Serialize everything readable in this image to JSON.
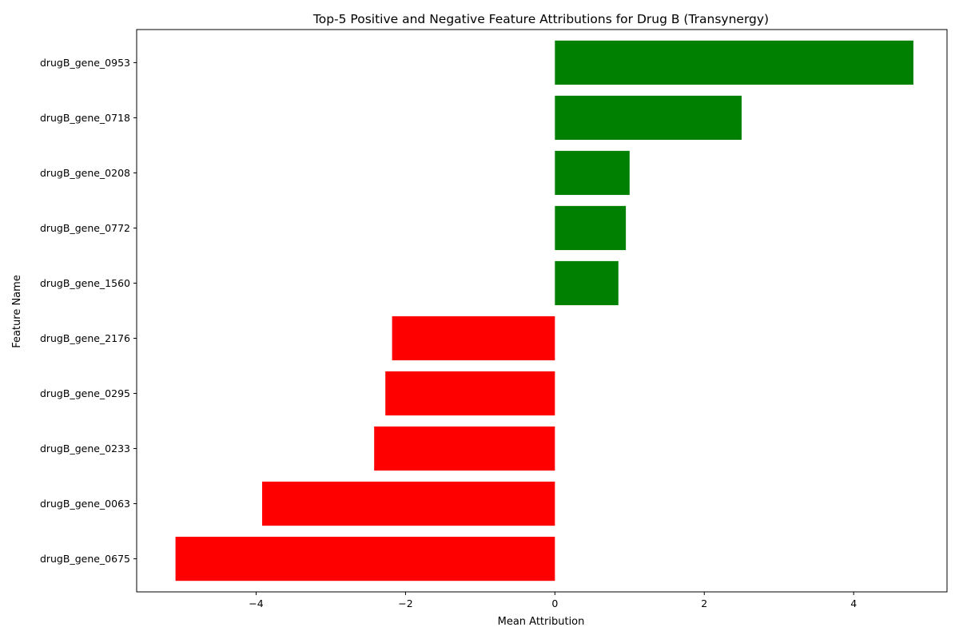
{
  "chart_data": {
    "type": "bar",
    "orientation": "horizontal",
    "title": "Top-5 Positive and Negative Feature Attributions for Drug B (Transynergy)",
    "xlabel": "Mean Attribution",
    "ylabel": "Feature Name",
    "xlim": [
      -5.6,
      5.25
    ],
    "xticks": [
      -4,
      -2,
      0,
      2,
      4
    ],
    "xtick_labels": [
      "−4",
      "−2",
      "0",
      "2",
      "4"
    ],
    "grid": false,
    "legend": "none",
    "colors": {
      "positive": "#008000",
      "negative": "#ff0000"
    },
    "categories": [
      "drugB_gene_0953",
      "drugB_gene_0718",
      "drugB_gene_0208",
      "drugB_gene_0772",
      "drugB_gene_1560",
      "drugB_gene_2176",
      "drugB_gene_0295",
      "drugB_gene_0233",
      "drugB_gene_0063",
      "drugB_gene_0675"
    ],
    "values": [
      4.8,
      2.5,
      1.0,
      0.95,
      0.85,
      -2.18,
      -2.27,
      -2.42,
      -3.92,
      -5.08
    ]
  }
}
